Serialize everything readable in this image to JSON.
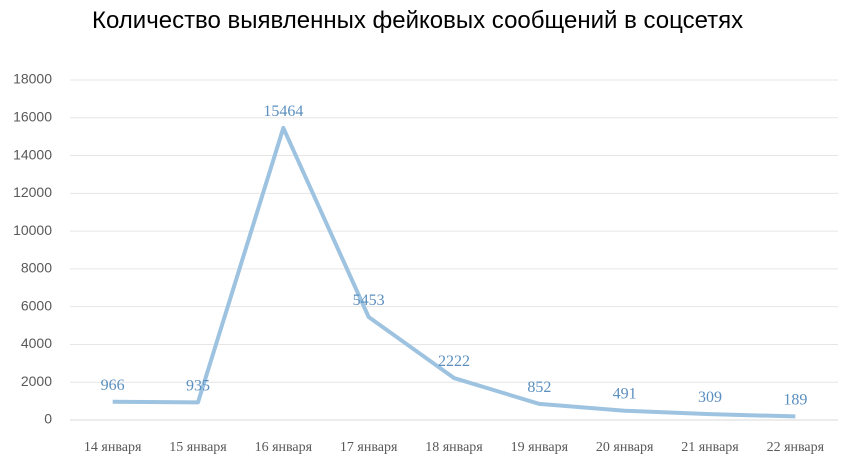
{
  "chart_data": {
    "type": "line",
    "title": "Количество выявленных фейковых сообщений в соцсетях",
    "categories": [
      "14 января",
      "15 января",
      "16 января",
      "17 января",
      "18 января",
      "19 января",
      "20 января",
      "21 января",
      "22 января"
    ],
    "series": [
      {
        "name": "Количество",
        "color": "#9dc3e0",
        "values": [
          966,
          935,
          15464,
          5453,
          2222,
          852,
          491,
          309,
          189
        ]
      }
    ],
    "ylim": [
      0,
      18000
    ],
    "yticks": [
      0,
      2000,
      4000,
      6000,
      8000,
      10000,
      12000,
      14000,
      16000,
      18000
    ],
    "grid": true
  }
}
